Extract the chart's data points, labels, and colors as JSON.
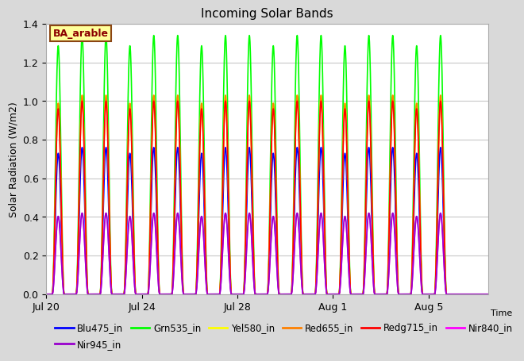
{
  "title": "Incoming Solar Bands",
  "ylabel": "Solar Radiation (W/m2)",
  "annotation_text": "BA_arable",
  "annotation_color": "#8B0000",
  "annotation_bg": "#FFFF99",
  "annotation_border": "#8B4513",
  "ylim": [
    0.0,
    1.4
  ],
  "yticks": [
    0.0,
    0.2,
    0.4,
    0.6,
    0.8,
    1.0,
    1.2,
    1.4
  ],
  "series": [
    {
      "name": "Blu475_in",
      "color": "#0000FF",
      "peak": 0.76,
      "sigma": 2.2
    },
    {
      "name": "Grn535_in",
      "color": "#00FF00",
      "peak": 1.34,
      "sigma": 2.5
    },
    {
      "name": "Yel580_in",
      "color": "#FFFF00",
      "peak": 1.03,
      "sigma": 2.2
    },
    {
      "name": "Red655_in",
      "color": "#FF8000",
      "peak": 1.03,
      "sigma": 2.2
    },
    {
      "name": "Redg715_in",
      "color": "#FF0000",
      "peak": 1.0,
      "sigma": 2.2
    },
    {
      "name": "Nir840_in",
      "color": "#FF00FF",
      "peak": 0.42,
      "sigma": 2.0
    },
    {
      "name": "Nir945_in",
      "color": "#9900CC",
      "peak": 0.42,
      "sigma": 2.0
    }
  ],
  "bg_color": "#D9D9D9",
  "plot_bg": "#FFFFFF",
  "grid_color": "#C8C8C8",
  "xtick_labels": [
    "Jul 20",
    "Jul 24",
    "Jul 28",
    "Aug 1",
    "Aug 5"
  ],
  "xtick_positions": [
    0,
    4,
    8,
    12,
    16
  ],
  "num_cycles": 17,
  "total_days": 18.5,
  "first_peak_hour": 12.0,
  "lw": 1.2
}
